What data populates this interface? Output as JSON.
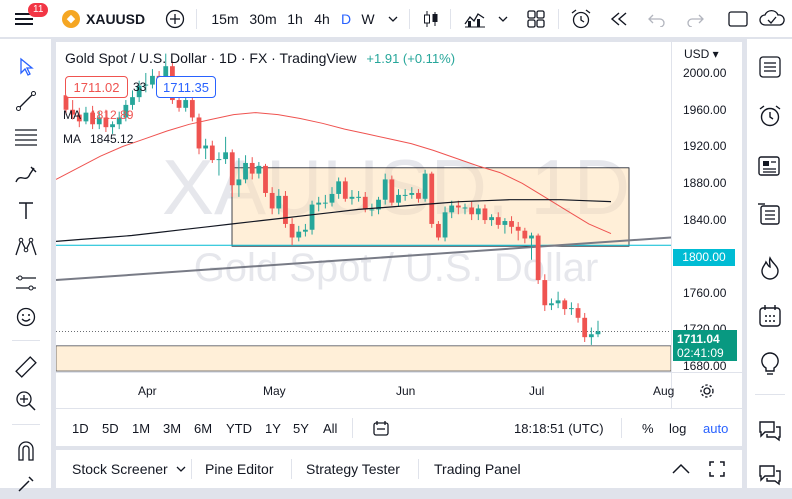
{
  "toolbar": {
    "notifications": "11",
    "symbol": "XAUUSD",
    "intervals": [
      "15m",
      "30m",
      "1h",
      "4h",
      "D",
      "W"
    ],
    "active_interval": "D"
  },
  "legend": {
    "title": "Gold Spot / U.S. Dollar · 1D · FX · TradingView",
    "change": "+1.91 (+0.11%)",
    "bid": "1711.02",
    "spread": "33",
    "ask": "1711.35",
    "ma1_label": "MA",
    "ma1_value": "1812.89",
    "ma2_label": "MA",
    "ma2_value": "1845.12"
  },
  "watermark": {
    "symbol": "XAUUSD, 1D",
    "name": "Gold Spot / U.S. Dollar"
  },
  "price_axis": {
    "currency": "USD",
    "ticks": [
      "2000.00",
      "1960.00",
      "1920.00",
      "1880.00",
      "1840.00",
      "1800.00",
      "1760.00",
      "1720.00",
      "1680.00"
    ],
    "hline_label": "1800.00",
    "last_price": "1711.04",
    "countdown": "02:41:09"
  },
  "time_axis": {
    "labels": [
      "Apr",
      "May",
      "Jun",
      "Jul",
      "Aug"
    ]
  },
  "ranges": {
    "items": [
      "1D",
      "5D",
      "1M",
      "3M",
      "6M",
      "YTD",
      "1Y",
      "5Y",
      "All"
    ],
    "clock": "18:18:51 (UTC)",
    "percent": "%",
    "log": "log",
    "auto": "auto"
  },
  "bottom_tabs": [
    "Stock Screener",
    "Pine Editor",
    "Strategy Tester",
    "Trading Panel"
  ],
  "colors": {
    "up": "#26a69a",
    "down": "#ef5350",
    "accent": "#2962ff",
    "hline": "#00bcd4",
    "box": "#ffe0b2"
  },
  "chart_data": {
    "type": "candlestick",
    "x": [
      "Mar 28",
      "Mar 29",
      "Mar 30",
      "Mar 31",
      "Apr 1",
      "Apr 4",
      "Apr 5",
      "Apr 6",
      "Apr 7",
      "Apr 8",
      "Apr 11",
      "Apr 12",
      "Apr 13",
      "Apr 14",
      "Apr 15",
      "Apr 18",
      "Apr 19",
      "Apr 20",
      "Apr 21",
      "Apr 22",
      "Apr 25",
      "Apr 26",
      "Apr 27",
      "Apr 28",
      "Apr 29",
      "May 2",
      "May 3",
      "May 4",
      "May 5",
      "May 6",
      "May 9",
      "May 10",
      "May 11",
      "May 12",
      "May 13",
      "May 16",
      "May 17",
      "May 18",
      "May 19",
      "May 20",
      "May 23",
      "May 24",
      "May 25",
      "May 26",
      "May 27",
      "May 30",
      "May 31",
      "Jun 1",
      "Jun 2",
      "Jun 3",
      "Jun 6",
      "Jun 7",
      "Jun 8",
      "Jun 9",
      "Jun 10",
      "Jun 13",
      "Jun 14",
      "Jun 15",
      "Jun 16",
      "Jun 17",
      "Jun 20",
      "Jun 21",
      "Jun 22",
      "Jun 23",
      "Jun 24",
      "Jun 27",
      "Jun 28",
      "Jun 29",
      "Jun 30",
      "Jul 1",
      "Jul 4",
      "Jul 5",
      "Jul 6",
      "Jul 7",
      "Jul 8",
      "Jul 11",
      "Jul 12",
      "Jul 13",
      "Jul 14",
      "Jul 15",
      "Jul 18"
    ],
    "open": [
      1955,
      1940,
      1935,
      1928,
      1937,
      1925,
      1932,
      1922,
      1925,
      1932,
      1945,
      1953,
      1965,
      1966,
      1975,
      1972,
      1985,
      1950,
      1942,
      1950,
      1932,
      1900,
      1903,
      1888,
      1889,
      1896,
      1862,
      1868,
      1885,
      1874,
      1882,
      1854,
      1838,
      1851,
      1822,
      1808,
      1814,
      1816,
      1842,
      1844,
      1844,
      1853,
      1866,
      1848,
      1850,
      1850,
      1837,
      1837,
      1847,
      1868,
      1844,
      1852,
      1852,
      1854,
      1848,
      1874,
      1822,
      1808,
      1834,
      1841,
      1839,
      1839,
      1832,
      1838,
      1826,
      1829,
      1821,
      1825,
      1819,
      1815,
      1807,
      1810,
      1764,
      1738,
      1740,
      1743,
      1734,
      1735,
      1725,
      1705,
      1708
    ],
    "close": [
      1940,
      1935,
      1928,
      1937,
      1925,
      1932,
      1922,
      1925,
      1932,
      1945,
      1953,
      1965,
      1966,
      1975,
      1972,
      1985,
      1950,
      1942,
      1950,
      1932,
      1900,
      1903,
      1888,
      1889,
      1896,
      1862,
      1868,
      1885,
      1874,
      1882,
      1854,
      1838,
      1851,
      1822,
      1808,
      1814,
      1816,
      1842,
      1844,
      1844,
      1853,
      1866,
      1848,
      1850,
      1850,
      1837,
      1837,
      1847,
      1868,
      1844,
      1852,
      1852,
      1854,
      1848,
      1874,
      1822,
      1808,
      1834,
      1841,
      1839,
      1839,
      1832,
      1838,
      1826,
      1829,
      1821,
      1825,
      1819,
      1815,
      1807,
      1810,
      1764,
      1738,
      1740,
      1743,
      1734,
      1735,
      1725,
      1705,
      1708,
      1711
    ],
    "high": [
      1966,
      1950,
      1942,
      1943,
      1944,
      1938,
      1940,
      1928,
      1938,
      1950,
      1960,
      1970,
      1978,
      1982,
      1980,
      1998,
      1990,
      1958,
      1955,
      1955,
      1936,
      1910,
      1908,
      1896,
      1912,
      1899,
      1890,
      1893,
      1891,
      1886,
      1884,
      1860,
      1858,
      1856,
      1828,
      1820,
      1822,
      1846,
      1850,
      1852,
      1860,
      1870,
      1870,
      1857,
      1856,
      1855,
      1843,
      1850,
      1874,
      1872,
      1858,
      1858,
      1860,
      1858,
      1878,
      1876,
      1825,
      1840,
      1846,
      1846,
      1843,
      1845,
      1842,
      1842,
      1832,
      1834,
      1828,
      1830,
      1824,
      1818,
      1813,
      1812,
      1770,
      1745,
      1752,
      1745,
      1741,
      1740,
      1730,
      1715,
      1722
    ],
    "low": [
      1935,
      1930,
      1922,
      1925,
      1920,
      1920,
      1917,
      1915,
      1920,
      1928,
      1940,
      1948,
      1958,
      1962,
      1965,
      1970,
      1946,
      1938,
      1938,
      1928,
      1894,
      1889,
      1885,
      1872,
      1884,
      1850,
      1850,
      1864,
      1868,
      1869,
      1850,
      1832,
      1832,
      1818,
      1800,
      1804,
      1809,
      1811,
      1835,
      1838,
      1840,
      1848,
      1845,
      1842,
      1845,
      1834,
      1830,
      1832,
      1842,
      1841,
      1840,
      1846,
      1848,
      1844,
      1845,
      1818,
      1805,
      1804,
      1828,
      1832,
      1832,
      1826,
      1826,
      1822,
      1820,
      1817,
      1812,
      1812,
      1805,
      1802,
      1785,
      1760,
      1732,
      1733,
      1735,
      1728,
      1728,
      1720,
      1700,
      1697,
      1705
    ],
    "ma_series": [
      {
        "name": "MA",
        "value": 1812.89,
        "color": "#ef5350",
        "y": [
          1868,
          1880,
          1892,
          1902,
          1910,
          1918,
          1925,
          1930,
          1935,
          1937,
          1935,
          1931,
          1926,
          1920,
          1915,
          1910,
          1905,
          1898,
          1890,
          1882,
          1875,
          1864,
          1850,
          1836,
          1822,
          1812
        ]
      },
      {
        "name": "MA",
        "value": 1845.12,
        "color": "#131722",
        "y": [
          1804,
          1806,
          1808,
          1810,
          1813,
          1816,
          1819,
          1822,
          1825,
          1828,
          1831,
          1834,
          1837,
          1839,
          1841,
          1843,
          1845,
          1846,
          1847,
          1847,
          1847,
          1846,
          1845.12
        ]
      }
    ],
    "hline": 1800,
    "range_box": {
      "top": 1880,
      "bottom": 1799
    },
    "ylim": [
      1669,
      2010
    ],
    "ylabel": "USD",
    "xticks": [
      "Apr",
      "May",
      "Jun",
      "Jul",
      "Aug"
    ]
  }
}
